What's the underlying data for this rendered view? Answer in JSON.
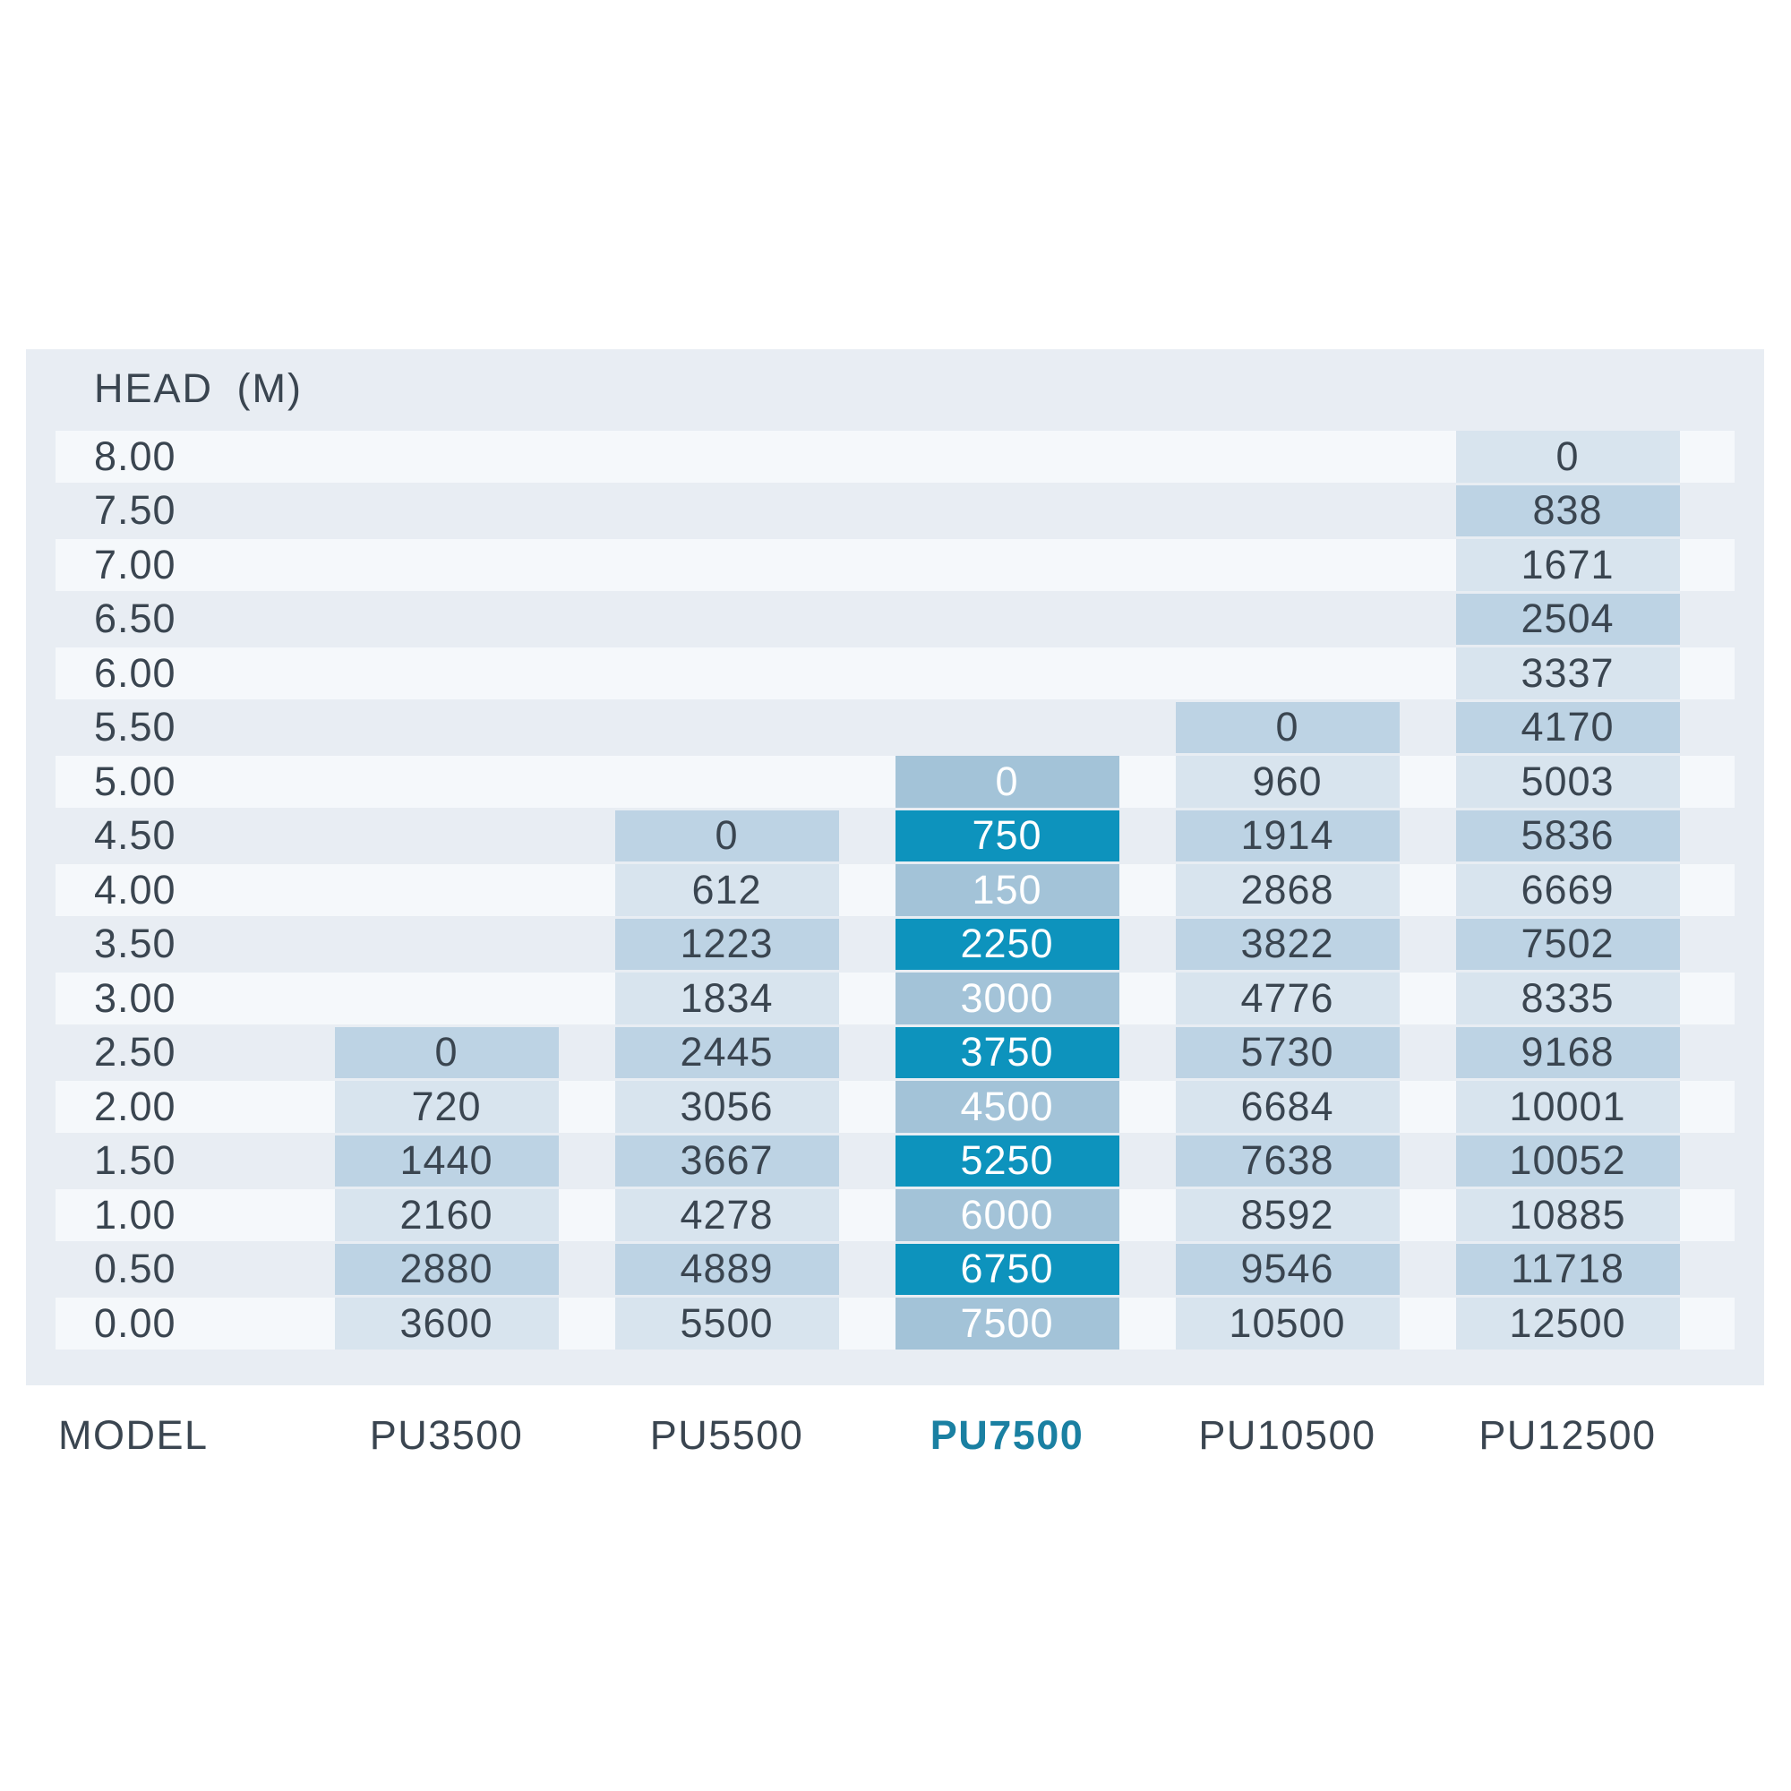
{
  "table": {
    "header": "HEAD (M)",
    "model_label": "MODEL",
    "models": [
      "PU3500",
      "PU5500",
      "PU7500",
      "PU10500",
      "PU12500"
    ],
    "highlighted_model": "PU7500",
    "highlighted_column_index": 2,
    "rows": [
      {
        "head": "8.00",
        "cells": [
          null,
          null,
          null,
          null,
          "0"
        ]
      },
      {
        "head": "7.50",
        "cells": [
          null,
          null,
          null,
          null,
          "838"
        ]
      },
      {
        "head": "7.00",
        "cells": [
          null,
          null,
          null,
          null,
          "1671"
        ]
      },
      {
        "head": "6.50",
        "cells": [
          null,
          null,
          null,
          null,
          "2504"
        ]
      },
      {
        "head": "6.00",
        "cells": [
          null,
          null,
          null,
          null,
          "3337"
        ]
      },
      {
        "head": "5.50",
        "cells": [
          null,
          null,
          null,
          "0",
          "4170"
        ]
      },
      {
        "head": "5.00",
        "cells": [
          null,
          null,
          "0",
          "960",
          "5003"
        ]
      },
      {
        "head": "4.50",
        "cells": [
          null,
          "0",
          "750",
          "1914",
          "5836"
        ]
      },
      {
        "head": "4.00",
        "cells": [
          null,
          "612",
          "150",
          "2868",
          "6669"
        ]
      },
      {
        "head": "3.50",
        "cells": [
          null,
          "1223",
          "2250",
          "3822",
          "7502"
        ]
      },
      {
        "head": "3.00",
        "cells": [
          null,
          "1834",
          "3000",
          "4776",
          "8335"
        ]
      },
      {
        "head": "2.50",
        "cells": [
          "0",
          "2445",
          "3750",
          "5730",
          "9168"
        ]
      },
      {
        "head": "2.00",
        "cells": [
          "720",
          "3056",
          "4500",
          "6684",
          "10001"
        ]
      },
      {
        "head": "1.50",
        "cells": [
          "1440",
          "3667",
          "5250",
          "7638",
          "10052"
        ]
      },
      {
        "head": "1.00",
        "cells": [
          "2160",
          "4278",
          "6000",
          "8592",
          "10885"
        ]
      },
      {
        "head": "0.50",
        "cells": [
          "2880",
          "4889",
          "6750",
          "9546",
          "11718"
        ]
      },
      {
        "head": "0.00",
        "cells": [
          "3600",
          "5500",
          "7500",
          "10500",
          "12500"
        ]
      }
    ]
  },
  "colors": {
    "panel_bg": "#e8edf3",
    "row_light": "#f5f8fb",
    "cell_light": "#d8e4ee",
    "cell_dark": "#bdd3e4",
    "highlight_cell_light": "#a3c3d8",
    "highlight_cell_dark": "#0d93bd",
    "text": "#3a4550",
    "highlight_text": "#ffffff",
    "highlight_model_text": "#1a80a2"
  },
  "chart_data": {
    "type": "table",
    "title": "HEAD (M)",
    "columns": [
      "MODEL",
      "PU3500",
      "PU5500",
      "PU7500",
      "PU10500",
      "PU12500"
    ],
    "head_m": [
      8.0,
      7.5,
      7.0,
      6.5,
      6.0,
      5.5,
      5.0,
      4.5,
      4.0,
      3.5,
      3.0,
      2.5,
      2.0,
      1.5,
      1.0,
      0.5,
      0.0
    ],
    "series": [
      {
        "name": "PU3500",
        "values": [
          null,
          null,
          null,
          null,
          null,
          null,
          null,
          null,
          null,
          null,
          null,
          0,
          720,
          1440,
          2160,
          2880,
          3600
        ]
      },
      {
        "name": "PU5500",
        "values": [
          null,
          null,
          null,
          null,
          null,
          null,
          null,
          0,
          612,
          1223,
          1834,
          2445,
          3056,
          3667,
          4278,
          4889,
          5500
        ]
      },
      {
        "name": "PU7500",
        "values": [
          null,
          null,
          null,
          null,
          null,
          null,
          0,
          750,
          150,
          2250,
          3000,
          3750,
          4500,
          5250,
          6000,
          6750,
          7500
        ]
      },
      {
        "name": "PU10500",
        "values": [
          null,
          null,
          null,
          null,
          null,
          0,
          960,
          1914,
          2868,
          3822,
          4776,
          5730,
          6684,
          7638,
          8592,
          9546,
          10500
        ]
      },
      {
        "name": "PU12500",
        "values": [
          0,
          838,
          1671,
          2504,
          3337,
          4170,
          5003,
          5836,
          6669,
          7502,
          8335,
          9168,
          10001,
          10052,
          10885,
          11718,
          12500
        ]
      }
    ],
    "highlighted_series": "PU7500",
    "legend_position": "bottom"
  }
}
